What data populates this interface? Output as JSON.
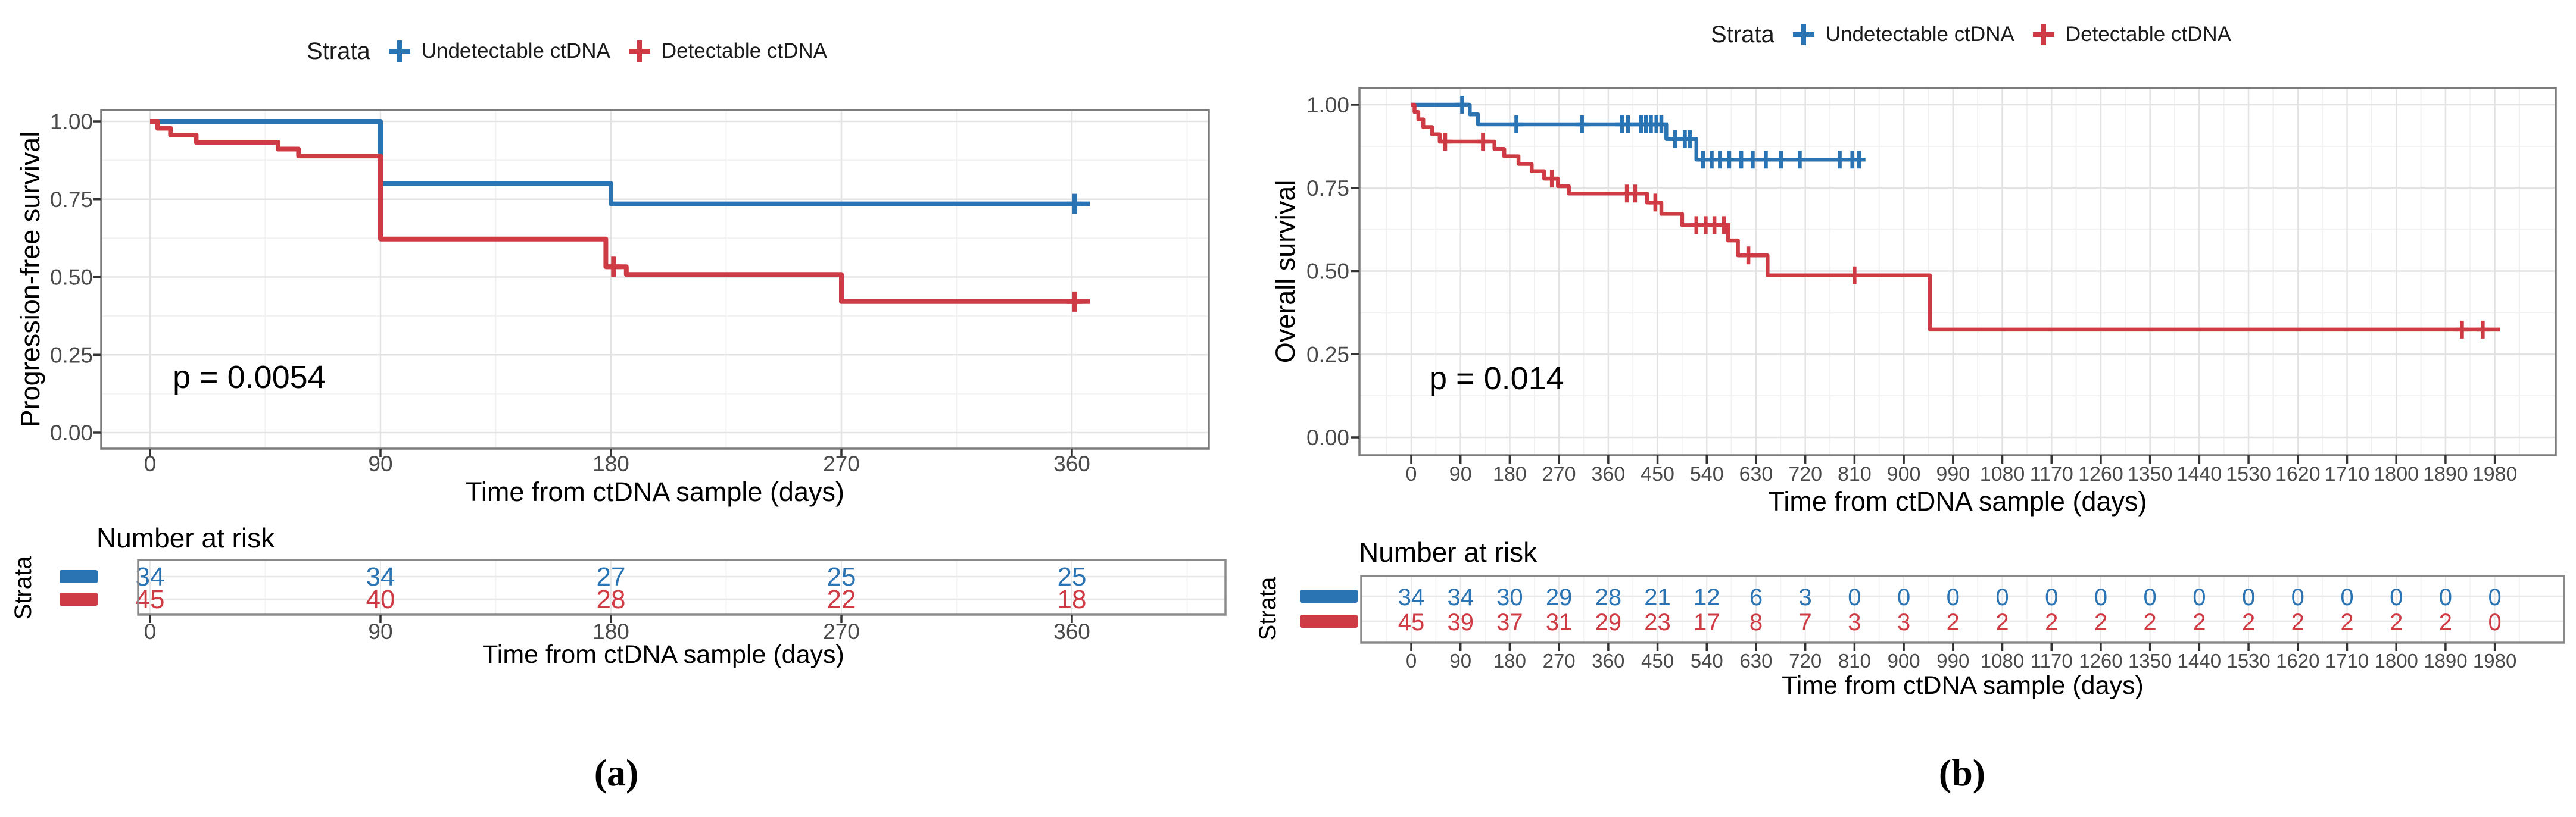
{
  "panels": [
    {
      "label": "(a)",
      "legend": {
        "title": "Strata",
        "items": [
          {
            "label": "Undetectable ctDNA",
            "color": "#2B74B3"
          },
          {
            "label": "Detectable ctDNA",
            "color": "#CF3B44"
          }
        ]
      },
      "chart_data": {
        "type": "line",
        "subtype": "kaplan-meier-step",
        "title": "",
        "xlabel": "Time from ctDNA sample (days)",
        "ylabel": "Progression-free survival",
        "p_value": "p = 0.0054",
        "ylim": [
          0,
          1
        ],
        "y_ticks": [
          "1.00",
          "0.75",
          "0.50",
          "0.25",
          "0.00"
        ],
        "x_ticks": [
          0,
          90,
          180,
          270,
          360
        ],
        "grid": true,
        "legend_position": "top",
        "series": [
          {
            "name": "Undetectable ctDNA",
            "color": "#2B74B3",
            "points": [
              [
                0,
                1.0
              ],
              [
                90,
                0.8
              ],
              [
                180,
                0.735
              ],
              [
                367,
                0.735
              ]
            ],
            "censors": [
              [
                361,
                0.735
              ]
            ]
          },
          {
            "name": "Detectable ctDNA",
            "color": "#CF3B44",
            "points": [
              [
                0,
                1.0
              ],
              [
                3,
                0.978
              ],
              [
                8,
                0.956
              ],
              [
                18,
                0.933
              ],
              [
                50,
                0.911
              ],
              [
                58,
                0.889
              ],
              [
                90,
                0.622
              ],
              [
                178,
                0.533
              ],
              [
                186,
                0.508
              ],
              [
                270,
                0.421
              ],
              [
                367,
                0.421
              ]
            ],
            "censors": [
              [
                181,
                0.533
              ],
              [
                361,
                0.421
              ]
            ]
          }
        ]
      },
      "risk_table": {
        "title": "Number at risk",
        "axis_label": "Strata",
        "x_title": "Time from ctDNA sample (days)",
        "times": [
          0,
          90,
          180,
          270,
          360
        ],
        "rows": [
          {
            "name": "Undetectable ctDNA",
            "color": "#2B74B3",
            "counts": [
              34,
              34,
              27,
              25,
              25
            ]
          },
          {
            "name": "Detectable ctDNA",
            "color": "#CF3B44",
            "counts": [
              45,
              40,
              28,
              22,
              18
            ]
          }
        ]
      }
    },
    {
      "label": "(b)",
      "legend": {
        "title": "Strata",
        "items": [
          {
            "label": "Undetectable ctDNA",
            "color": "#2B74B3"
          },
          {
            "label": "Detectable ctDNA",
            "color": "#CF3B44"
          }
        ]
      },
      "chart_data": {
        "type": "line",
        "subtype": "kaplan-meier-step",
        "title": "",
        "xlabel": "Time from ctDNA sample (days)",
        "ylabel": "Overall survival",
        "p_value": "p = 0.014",
        "ylim": [
          0,
          1
        ],
        "y_ticks": [
          "1.00",
          "0.75",
          "0.50",
          "0.25",
          "0.00"
        ],
        "x_ticks": [
          0,
          90,
          180,
          270,
          360,
          450,
          540,
          630,
          720,
          810,
          900,
          990,
          1080,
          1170,
          1260,
          1350,
          1440,
          1530,
          1620,
          1710,
          1800,
          1890,
          1980
        ],
        "grid": true,
        "legend_position": "top",
        "series": [
          {
            "name": "Undetectable ctDNA",
            "color": "#2B74B3",
            "points": [
              [
                0,
                1.0
              ],
              [
                107,
                0.971
              ],
              [
                122,
                0.941
              ],
              [
                466,
                0.897
              ],
              [
                521,
                0.835
              ],
              [
                828,
                0.835
              ]
            ],
            "censors": [
              [
                93,
                1.0
              ],
              [
                192,
                0.941
              ],
              [
                312,
                0.941
              ],
              [
                385,
                0.941
              ],
              [
                396,
                0.941
              ],
              [
                420,
                0.941
              ],
              [
                429,
                0.941
              ],
              [
                438,
                0.941
              ],
              [
                448,
                0.941
              ],
              [
                457,
                0.941
              ],
              [
                482,
                0.897
              ],
              [
                500,
                0.897
              ],
              [
                509,
                0.897
              ],
              [
                533,
                0.835
              ],
              [
                549,
                0.835
              ],
              [
                564,
                0.835
              ],
              [
                581,
                0.835
              ],
              [
                603,
                0.835
              ],
              [
                624,
                0.835
              ],
              [
                648,
                0.835
              ],
              [
                676,
                0.835
              ],
              [
                710,
                0.835
              ],
              [
                783,
                0.835
              ],
              [
                806,
                0.835
              ],
              [
                818,
                0.835
              ]
            ]
          },
          {
            "name": "Detectable ctDNA",
            "color": "#CF3B44",
            "points": [
              [
                0,
                1.0
              ],
              [
                6,
                0.978
              ],
              [
                13,
                0.956
              ],
              [
                22,
                0.933
              ],
              [
                38,
                0.911
              ],
              [
                52,
                0.889
              ],
              [
                152,
                0.867
              ],
              [
                170,
                0.845
              ],
              [
                196,
                0.822
              ],
              [
                220,
                0.8
              ],
              [
                243,
                0.778
              ],
              [
                268,
                0.755
              ],
              [
                288,
                0.733
              ],
              [
                431,
                0.706
              ],
              [
                457,
                0.672
              ],
              [
                495,
                0.638
              ],
              [
                579,
                0.592
              ],
              [
                597,
                0.547
              ],
              [
                651,
                0.487
              ],
              [
                948,
                0.324
              ],
              [
                1990,
                0.324
              ]
            ],
            "censors": [
              [
                62,
                0.889
              ],
              [
                131,
                0.889
              ],
              [
                257,
                0.778
              ],
              [
                394,
                0.733
              ],
              [
                409,
                0.733
              ],
              [
                446,
                0.706
              ],
              [
                521,
                0.638
              ],
              [
                538,
                0.638
              ],
              [
                554,
                0.638
              ],
              [
                571,
                0.638
              ],
              [
                616,
                0.547
              ],
              [
                810,
                0.487
              ],
              [
                1920,
                0.324
              ],
              [
                1958,
                0.324
              ]
            ]
          }
        ]
      },
      "risk_table": {
        "title": "Number at risk",
        "axis_label": "Strata",
        "x_title": "Time from ctDNA sample (days)",
        "times": [
          0,
          90,
          180,
          270,
          360,
          450,
          540,
          630,
          720,
          810,
          900,
          990,
          1080,
          1170,
          1260,
          1350,
          1440,
          1530,
          1620,
          1710,
          1800,
          1890,
          1980
        ],
        "rows": [
          {
            "name": "Undetectable ctDNA",
            "color": "#2B74B3",
            "counts": [
              34,
              34,
              30,
              29,
              28,
              21,
              12,
              6,
              3,
              0,
              0,
              0,
              0,
              0,
              0,
              0,
              0,
              0,
              0,
              0,
              0,
              0,
              0
            ]
          },
          {
            "name": "Detectable ctDNA",
            "color": "#CF3B44",
            "counts": [
              45,
              39,
              37,
              31,
              29,
              23,
              17,
              8,
              7,
              3,
              3,
              2,
              2,
              2,
              2,
              2,
              2,
              2,
              2,
              2,
              2,
              2,
              0
            ]
          }
        ]
      }
    }
  ]
}
